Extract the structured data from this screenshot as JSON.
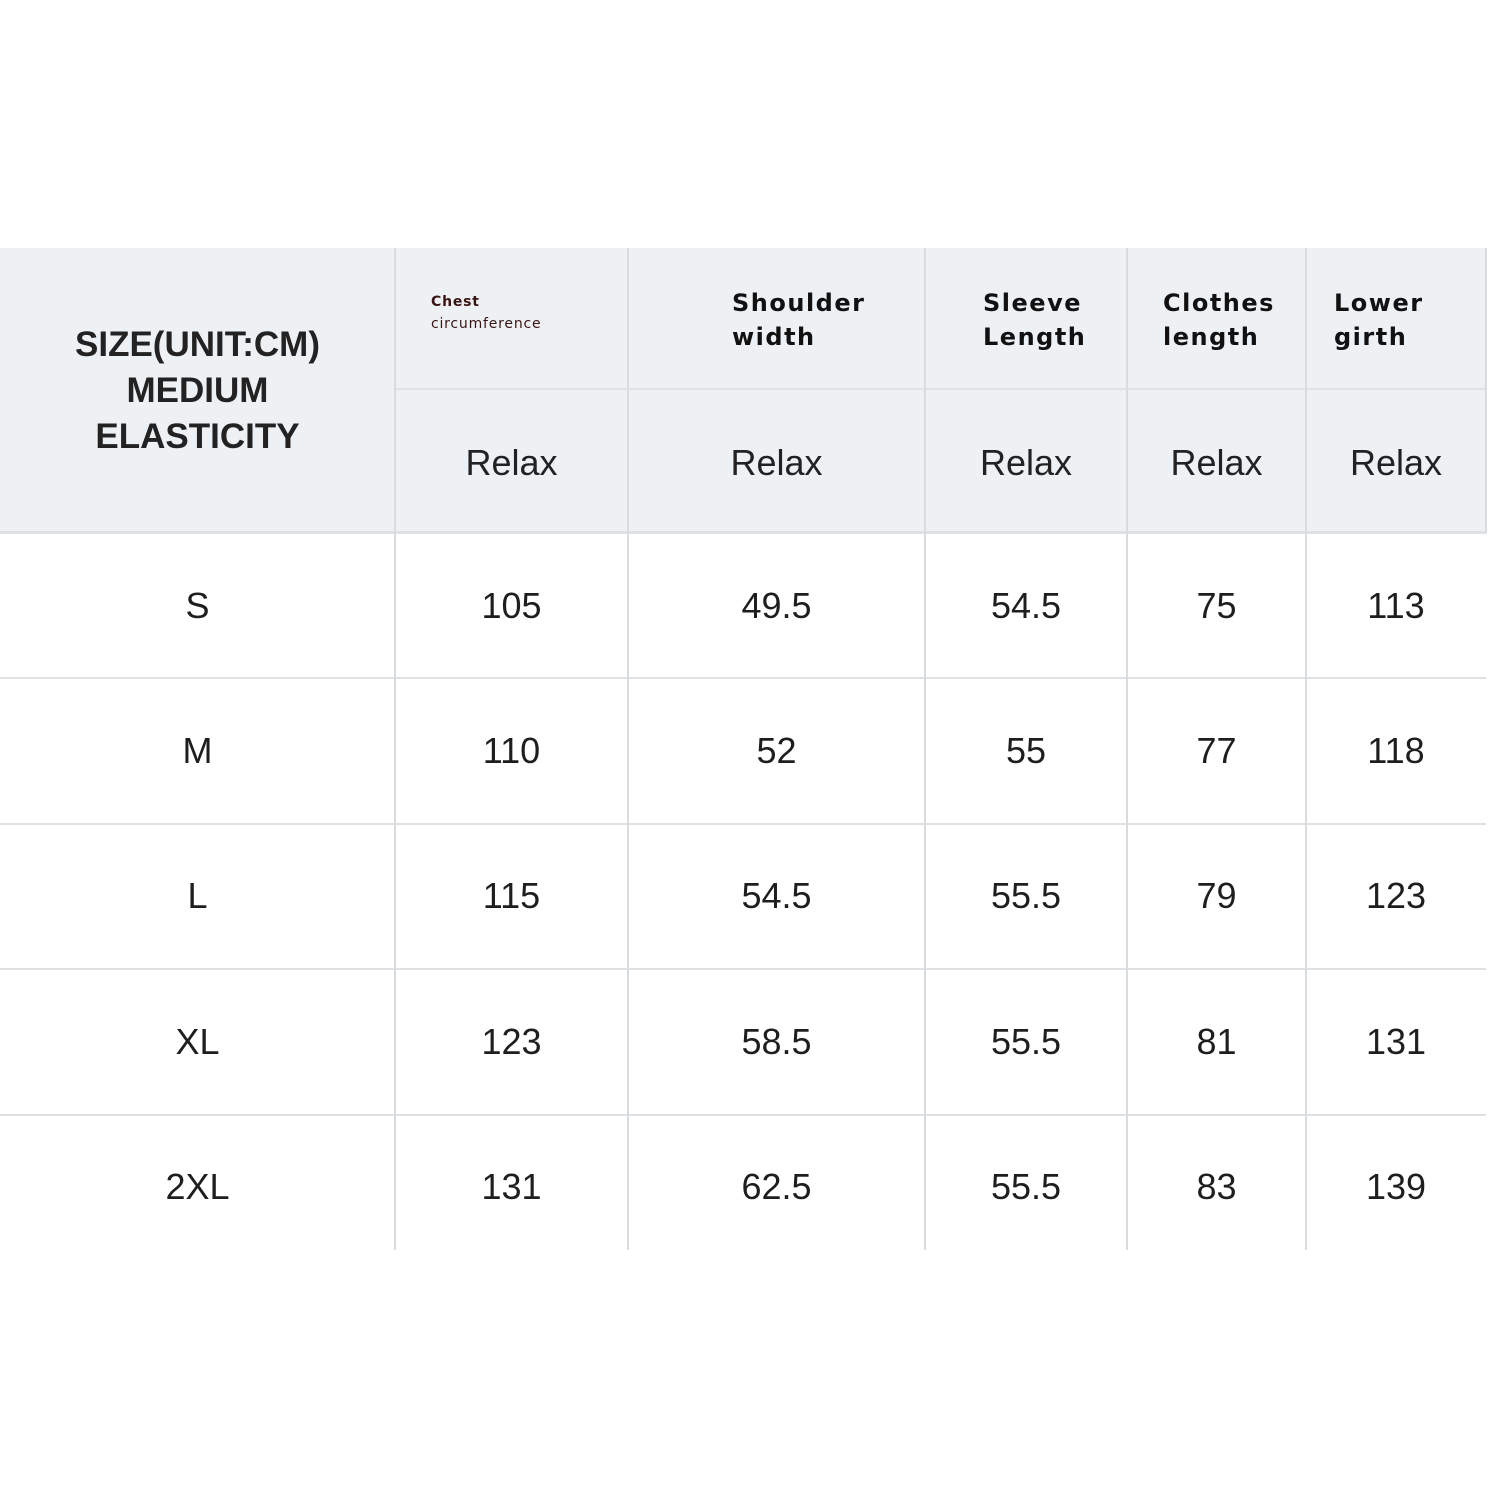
{
  "header": {
    "size_title": [
      "SIZE(UNIT:CM)",
      "MEDIUM",
      "ELASTICITY"
    ],
    "columns": [
      {
        "line1": "Chest",
        "line2": "circumference",
        "fit": "Relax"
      },
      {
        "line1": "Shoulder",
        "line2": "width",
        "fit": "Relax"
      },
      {
        "line1": "Sleeve",
        "line2": "Length",
        "fit": "Relax"
      },
      {
        "line1": "Clothes",
        "line2": "length",
        "fit": "Relax"
      },
      {
        "line1": "Lower",
        "line2": "girth",
        "fit": "Relax"
      }
    ]
  },
  "rows": [
    {
      "size": "S",
      "values": [
        "105",
        "49.5",
        "54.5",
        "75",
        "113"
      ]
    },
    {
      "size": "M",
      "values": [
        "110",
        "52",
        "55",
        "77",
        "118"
      ]
    },
    {
      "size": "L",
      "values": [
        "115",
        "54.5",
        "55.5",
        "79",
        "123"
      ]
    },
    {
      "size": "XL",
      "values": [
        "123",
        "58.5",
        "55.5",
        "81",
        "131"
      ]
    },
    {
      "size": "2XL",
      "values": [
        "131",
        "62.5",
        "55.5",
        "83",
        "139"
      ]
    }
  ],
  "colors": {
    "header_bg": "#eef1f4",
    "grid": "#d9dcdf"
  }
}
